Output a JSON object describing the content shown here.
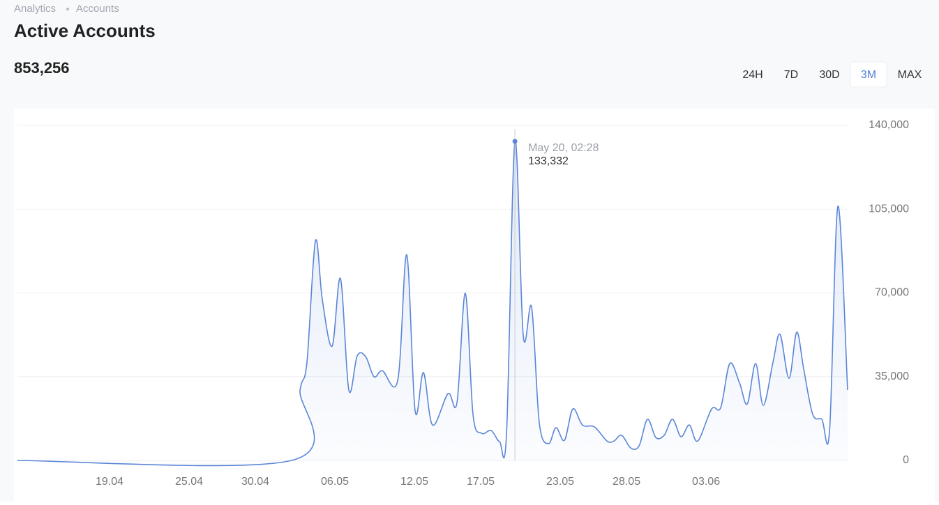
{
  "breadcrumb": [
    "Analytics",
    "Accounts"
  ],
  "title": "Active Accounts",
  "total": "853,256",
  "ranges": [
    "24H",
    "7D",
    "30D",
    "3M",
    "MAX"
  ],
  "selected_range": "3M",
  "chart_data": {
    "type": "line",
    "color": "#5b86d6",
    "grid": true,
    "x": [
      12.05,
      32.74,
      33.37,
      33.89,
      34.53,
      35.05,
      35.79,
      36.42,
      37.05,
      37.68,
      38.32,
      38.95,
      39.58,
      40.74,
      41.42,
      42.05,
      42.68,
      43.37,
      44.53,
      45.21,
      45.84,
      46.42,
      47.05,
      47.79,
      48.42,
      48.95,
      49.58,
      50.21,
      50.84,
      51.42,
      52.11,
      52.68,
      53.32,
      53.95,
      54.68,
      55.58,
      56.53,
      57.05,
      57.63,
      58.32,
      58.95,
      59.58,
      60.21,
      60.84,
      61.47,
      62.11,
      62.74,
      63.37,
      64.42,
      65.11,
      65.79,
      66.53,
      67.11,
      67.74,
      68.32,
      69.05,
      69.58,
      70.26,
      70.84,
      71.37,
      72.05,
      72.74,
      73.32,
      73.95,
      74.68
    ],
    "values": [
      0,
      0,
      29400,
      41000,
      91700,
      67200,
      47700,
      76000,
      29400,
      43700,
      43400,
      35000,
      37500,
      33500,
      85900,
      20700,
      36700,
      14800,
      27900,
      24200,
      69900,
      19200,
      11400,
      12500,
      7900,
      11400,
      133332,
      52100,
      64000,
      15700,
      7000,
      13700,
      8400,
      21500,
      14800,
      14000,
      8100,
      8100,
      10500,
      5200,
      6100,
      17200,
      9600,
      10500,
      17200,
      9900,
      14800,
      8100,
      21500,
      22100,
      40500,
      32300,
      23600,
      40500,
      23000,
      41000,
      52700,
      34300,
      53600,
      38100,
      19200,
      17200,
      12500,
      106200,
      29400
    ],
    "xlim": [
      12.05,
      74.68
    ],
    "xticks": [
      {
        "value": 19,
        "label": "19.04"
      },
      {
        "value": 25,
        "label": "25.04"
      },
      {
        "value": 30,
        "label": "30.04"
      },
      {
        "value": 36,
        "label": "06.05"
      },
      {
        "value": 42,
        "label": "12.05"
      },
      {
        "value": 47,
        "label": "17.05"
      },
      {
        "value": 53,
        "label": "23.05"
      },
      {
        "value": 58,
        "label": "28.05"
      },
      {
        "value": 64,
        "label": "03.06"
      }
    ],
    "ylim": [
      0,
      140000
    ],
    "yticks": [
      0,
      {
        "value": 35000,
        "label": "35,000"
      },
      {
        "value": 70000,
        "label": "70,000"
      },
      {
        "value": 105000,
        "label": "105,000"
      },
      {
        "value": 140000,
        "label": "140,000"
      }
    ],
    "tooltip": {
      "date": "May 20, 02:28",
      "label": "133,332"
    }
  }
}
